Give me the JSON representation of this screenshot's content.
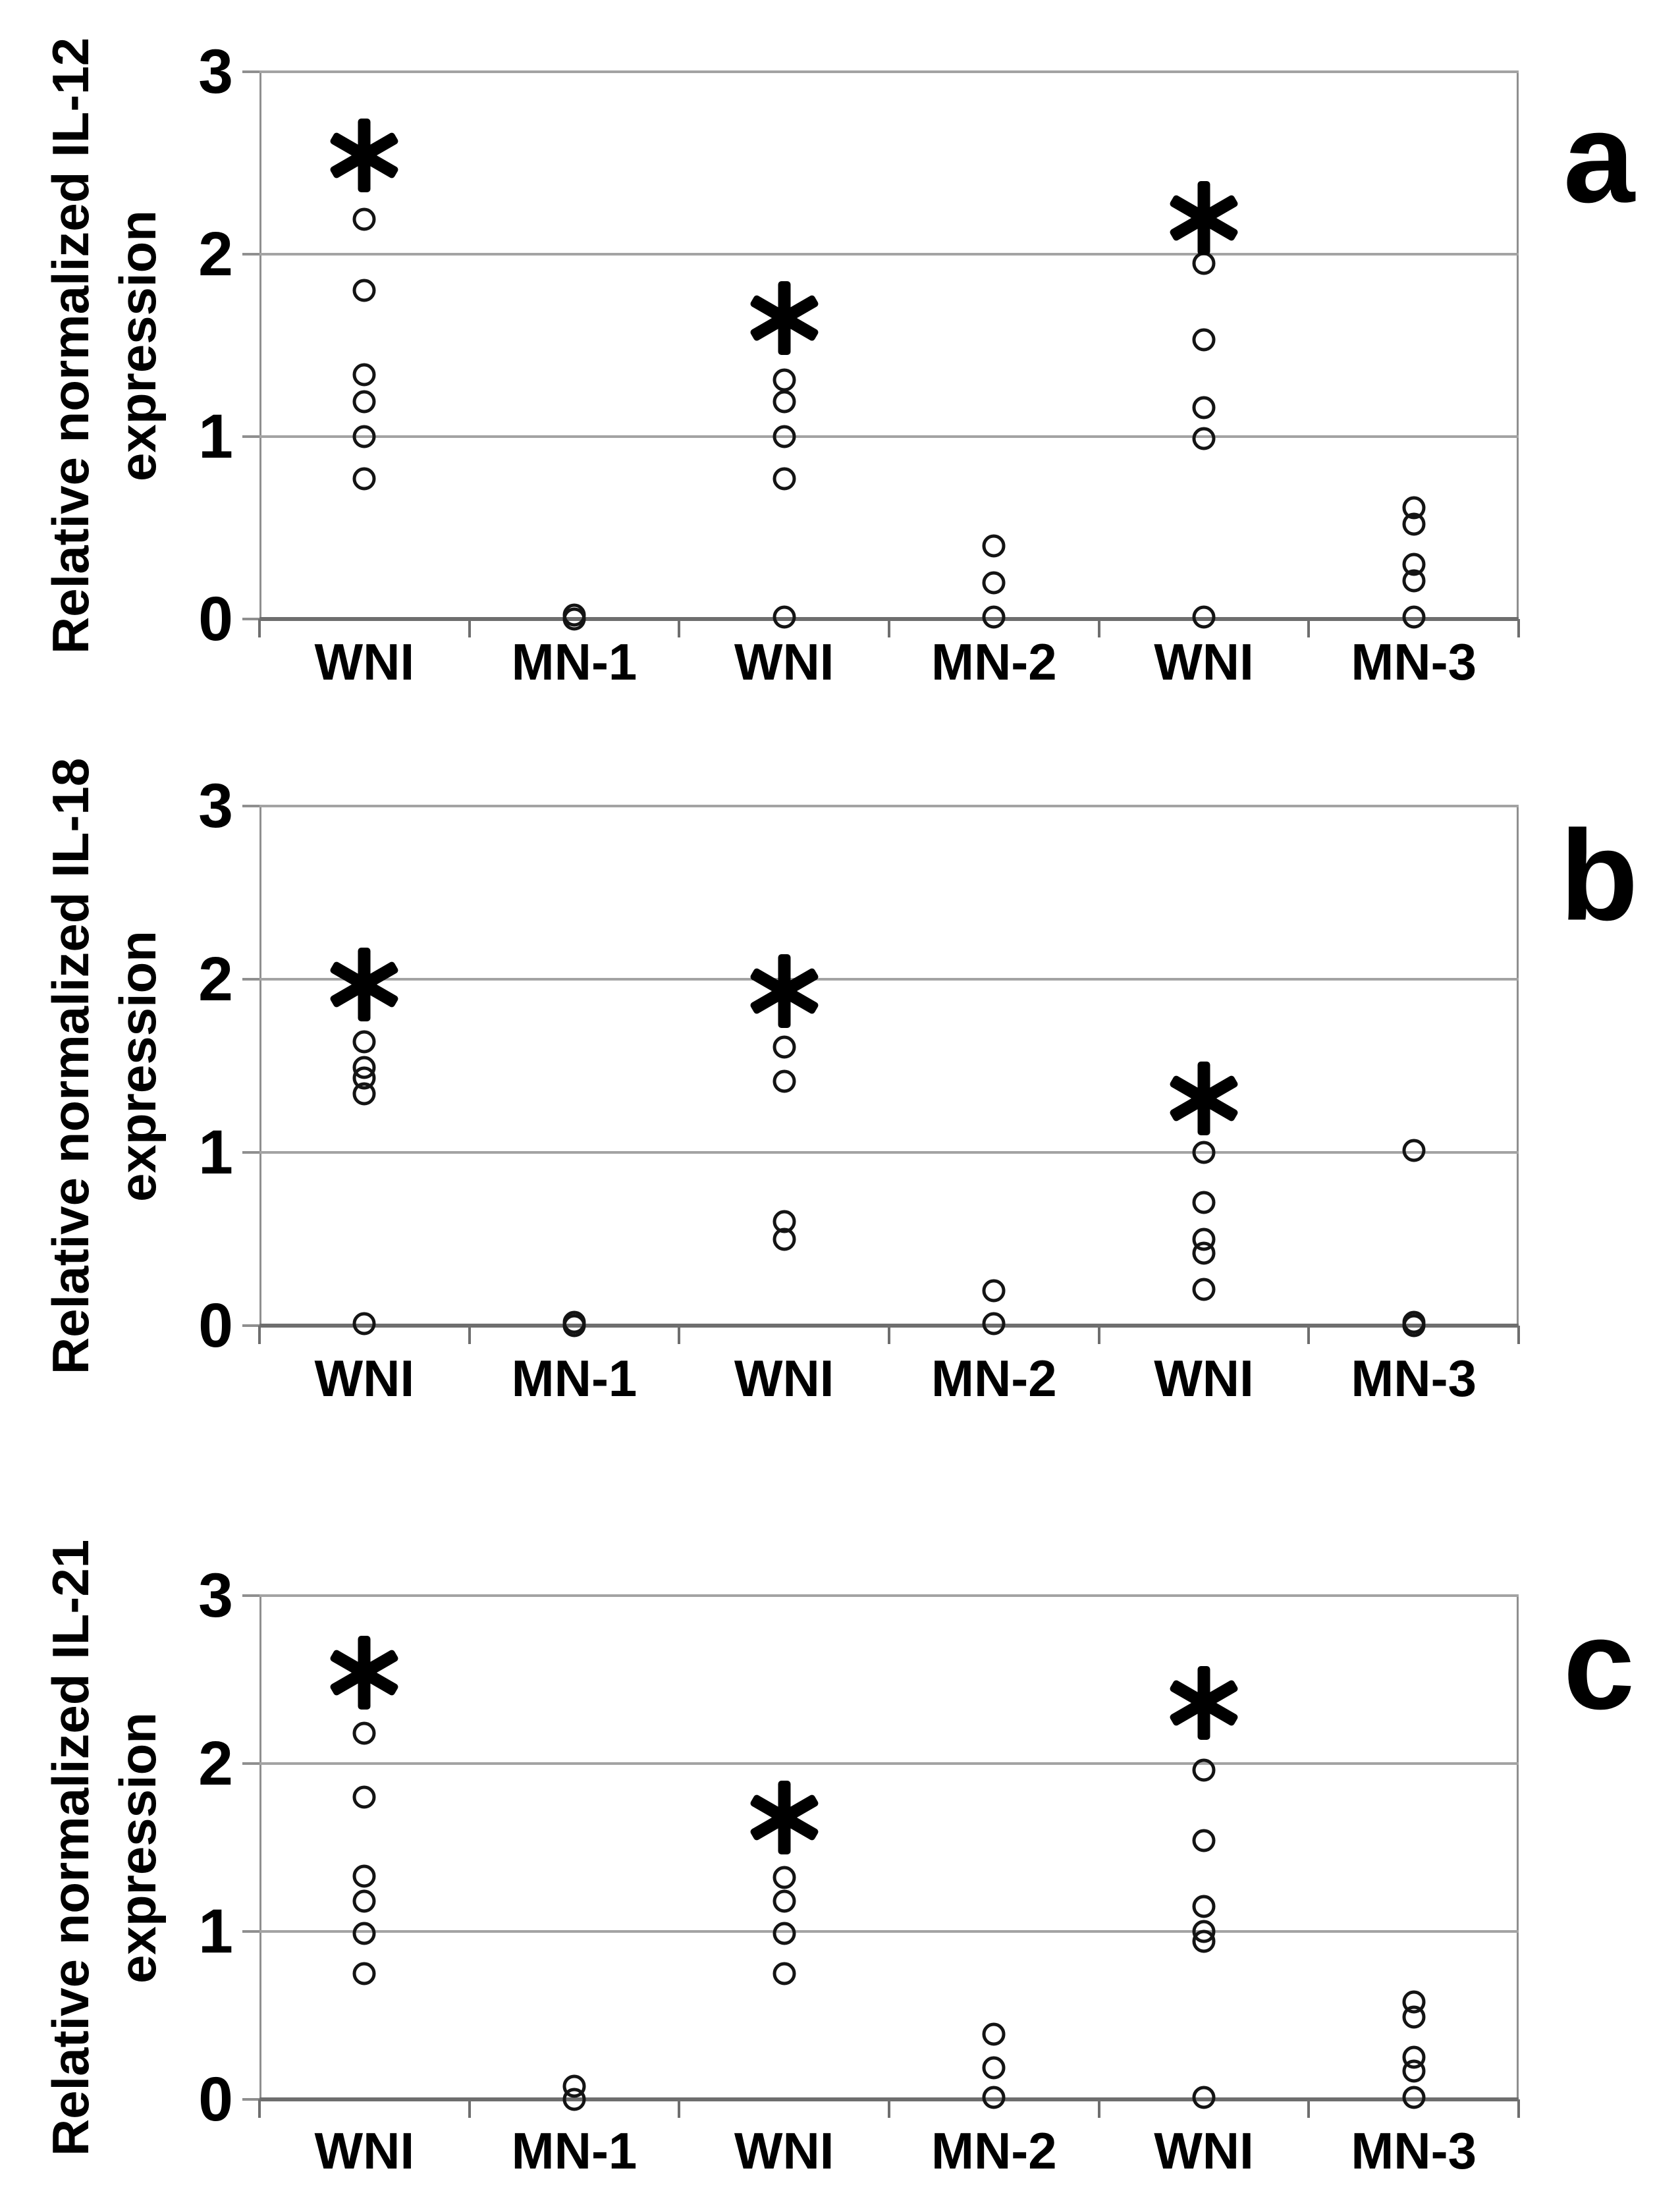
{
  "figure": {
    "background_color": "#ffffff",
    "marker_color": "#141414",
    "grid_color": "#a3a3a3",
    "marker_style": "open-circle",
    "significance_symbol": "*"
  },
  "chart_data": [
    {
      "type": "scatter",
      "panel_letter": "a",
      "ylabel_line1": "Relative normalized IL-12",
      "ylabel_line2": "expression",
      "ylabel": "Relative normalized IL-12 expression",
      "ylim": [
        0,
        3
      ],
      "yticks": [
        0,
        1,
        2,
        3
      ],
      "grid": true,
      "categories": [
        "WNI",
        "MN-1",
        "WNI",
        "MN-2",
        "WNI",
        "MN-3"
      ],
      "groups": [
        {
          "category": "WNI",
          "points": [
            2.19,
            1.8,
            1.34,
            1.19,
            1.0,
            0.77
          ],
          "asterisk": 2.54
        },
        {
          "category": "MN-1",
          "points": [
            0.02,
            0.0
          ],
          "asterisk": null
        },
        {
          "category": "WNI",
          "points": [
            1.31,
            1.19,
            1.0,
            0.77,
            0.01
          ],
          "asterisk": 1.65
        },
        {
          "category": "MN-2",
          "points": [
            0.4,
            0.2,
            0.01
          ],
          "asterisk": null
        },
        {
          "category": "WNI",
          "points": [
            1.95,
            1.53,
            1.16,
            0.99,
            0.01
          ],
          "asterisk": 2.2
        },
        {
          "category": "MN-3",
          "points": [
            0.61,
            0.52,
            0.3,
            0.21,
            0.01
          ],
          "asterisk": null
        }
      ]
    },
    {
      "type": "scatter",
      "panel_letter": "b",
      "ylabel_line1": "Relative normalized IL-18",
      "ylabel_line2": "expression",
      "ylabel": "Relative normalized IL-18 expression",
      "ylim": [
        0,
        3
      ],
      "yticks": [
        0,
        1,
        2,
        3
      ],
      "grid": true,
      "categories": [
        "WNI",
        "MN-1",
        "WNI",
        "MN-2",
        "WNI",
        "MN-3"
      ],
      "groups": [
        {
          "category": "WNI",
          "points": [
            1.64,
            1.49,
            1.43,
            1.34,
            0.01
          ],
          "asterisk": 1.97
        },
        {
          "category": "MN-1",
          "points": [
            0.02,
            0.0
          ],
          "asterisk": null
        },
        {
          "category": "WNI",
          "points": [
            1.61,
            1.41,
            0.6,
            0.5
          ],
          "asterisk": 1.93
        },
        {
          "category": "MN-2",
          "points": [
            0.2,
            0.01
          ],
          "asterisk": null
        },
        {
          "category": "WNI",
          "points": [
            1.0,
            0.71,
            0.5,
            0.42,
            0.21
          ],
          "asterisk": 1.31
        },
        {
          "category": "MN-3",
          "points": [
            1.01,
            0.02,
            0.0
          ],
          "asterisk": null
        }
      ]
    },
    {
      "type": "scatter",
      "panel_letter": "c",
      "ylabel_line1": "Relative normalized IL-21",
      "ylabel_line2": "expression",
      "ylabel": "Relative normalized IL-21 expression",
      "ylim": [
        0,
        3
      ],
      "yticks": [
        0,
        1,
        2,
        3
      ],
      "grid": true,
      "categories": [
        "WNI",
        "MN-1",
        "WNI",
        "MN-2",
        "WNI",
        "MN-3"
      ],
      "groups": [
        {
          "category": "WNI",
          "points": [
            2.18,
            1.8,
            1.33,
            1.18,
            0.99,
            0.75
          ],
          "asterisk": 2.54
        },
        {
          "category": "MN-1",
          "points": [
            0.08,
            0.0
          ],
          "asterisk": null
        },
        {
          "category": "WNI",
          "points": [
            1.32,
            1.18,
            0.99,
            0.75
          ],
          "asterisk": 1.68
        },
        {
          "category": "MN-2",
          "points": [
            0.39,
            0.19,
            0.01
          ],
          "asterisk": null
        },
        {
          "category": "WNI",
          "points": [
            1.96,
            1.54,
            1.15,
            1.0,
            0.94,
            0.01
          ],
          "asterisk": 2.36
        },
        {
          "category": "MN-3",
          "points": [
            0.58,
            0.49,
            0.25,
            0.17,
            0.01
          ],
          "asterisk": null
        }
      ]
    }
  ]
}
